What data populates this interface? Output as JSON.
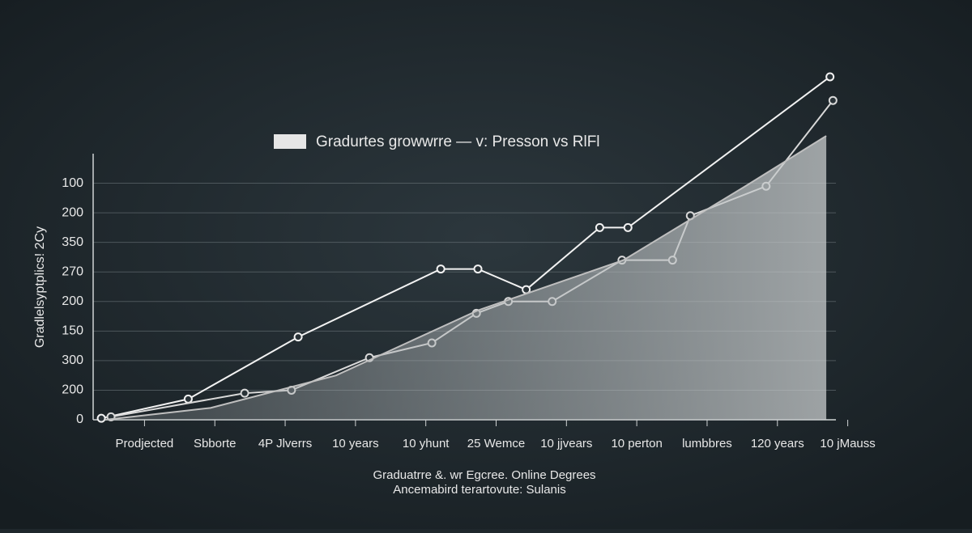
{
  "chart_data": {
    "type": "line",
    "title": "Gradurtes growwrre — v: Presson vs RlFl",
    "y_label": "Gradlelsyptplics! 2Cy",
    "footer": [
      "Graduatrre &. wr Egcree. Online Degrees",
      "Ancemabird terartovute: Sulanis"
    ],
    "categories": [
      "Prodjected",
      "Sbborte",
      "4P Jlverrs",
      "10 years",
      "10 yhunt",
      "25 Wemce",
      "10 jjvears",
      "10 perton",
      "lumbbres",
      "120 years",
      "10 jMauss"
    ],
    "xlim": [
      0,
      100
    ],
    "ylim": [
      0,
      9
    ],
    "yticks": [
      {
        "value": 0,
        "label": "0"
      },
      {
        "value": 1,
        "label": "200"
      },
      {
        "value": 2,
        "label": "300"
      },
      {
        "value": 3,
        "label": "150"
      },
      {
        "value": 4,
        "label": "200"
      },
      {
        "value": 5,
        "label": "270"
      },
      {
        "value": 6,
        "label": "350"
      },
      {
        "value": 7,
        "label": "200"
      },
      {
        "value": 8,
        "label": "100"
      }
    ],
    "grid": true,
    "series": [
      {
        "color": "#f2f2f2",
        "area": false,
        "x": [
          1.1,
          12.8,
          27.6,
          46.8,
          51.8,
          58.3,
          68.2,
          72.0,
          99.2
        ],
        "values": [
          0.05,
          0.7,
          2.8,
          5.1,
          5.1,
          4.4,
          6.5,
          6.5,
          11.6
        ]
      },
      {
        "color": "#d9d9d9",
        "area": false,
        "x": [
          2.4,
          20.4,
          26.7,
          37.2,
          45.6,
          51.6,
          55.9,
          61.8,
          71.2,
          78.0,
          80.4,
          90.6,
          99.6
        ],
        "values": [
          0.1,
          0.9,
          1.0,
          2.1,
          2.6,
          3.6,
          4.0,
          4.0,
          5.4,
          5.4,
          6.9,
          7.9,
          10.8
        ]
      },
      {
        "color": "#bfbfbf",
        "area": true,
        "x": [
          1.6,
          15.8,
          32.7,
          51.8,
          71.4,
          87.8,
          98.7
        ],
        "values": [
          0,
          0.4,
          1.5,
          3.7,
          5.4,
          7.9,
          9.6
        ]
      }
    ]
  }
}
